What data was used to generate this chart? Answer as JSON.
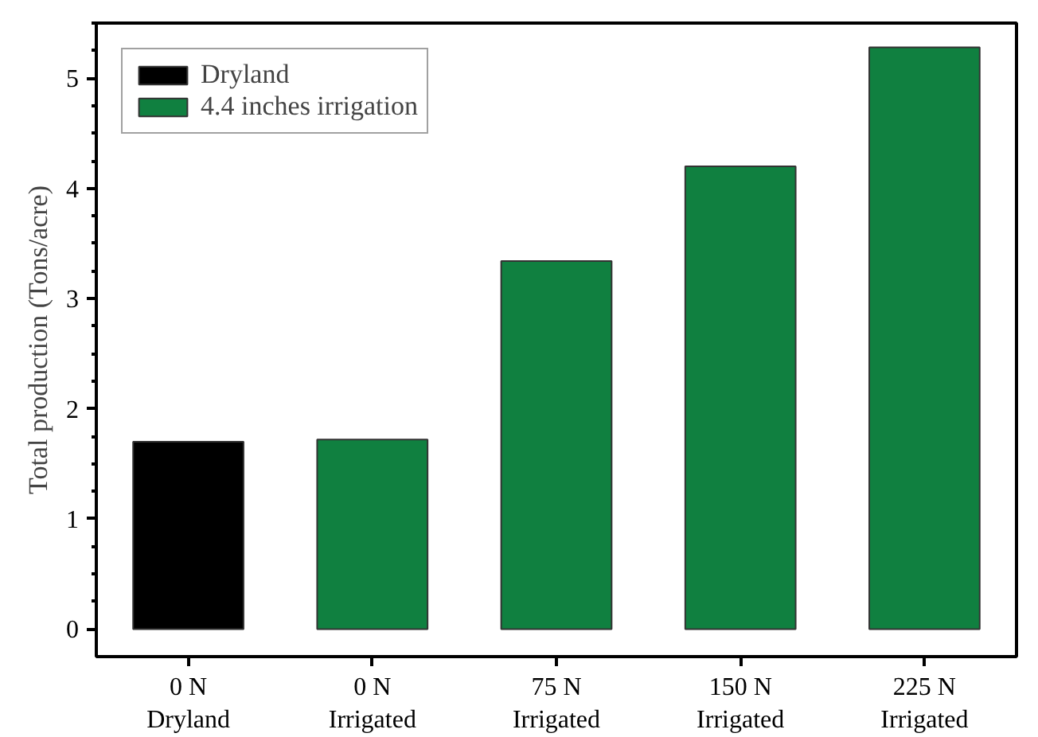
{
  "chart_data": {
    "type": "bar",
    "ylabel": "Total production (Tons/acre)",
    "categories": [
      "0 N\nDryland",
      "0 N\nIrrigated",
      "75 N\nIrrigated",
      "150 N\nIrrigated",
      "225 N\nIrrigated"
    ],
    "series": [
      {
        "name": "Dryland",
        "color": "#000000",
        "values": [
          1.7,
          null,
          null,
          null,
          null
        ]
      },
      {
        "name": "4.4 inches irrigation",
        "color": "#108040",
        "values": [
          null,
          1.72,
          3.34,
          4.2,
          5.28
        ]
      }
    ],
    "ylim": [
      -0.25,
      5.5
    ],
    "yticks": [
      0,
      1,
      2,
      3,
      4,
      5
    ],
    "grid": false,
    "legend": "top left"
  }
}
